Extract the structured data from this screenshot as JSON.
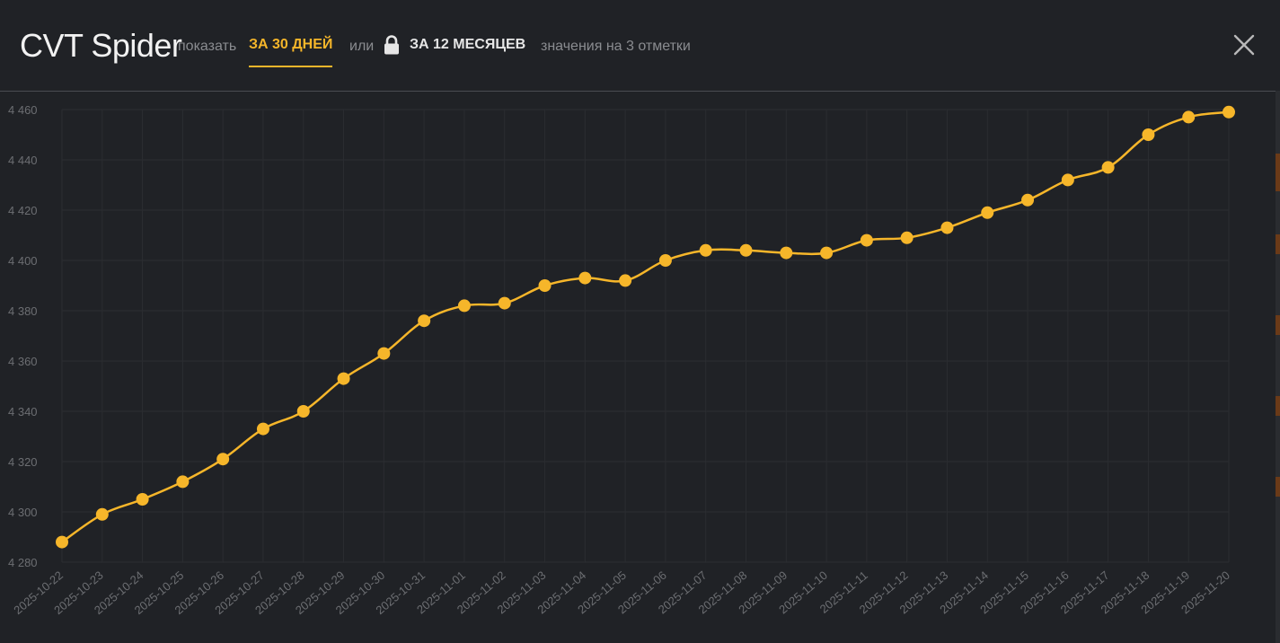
{
  "header": {
    "title": "CVT Spider",
    "show_label": "показать",
    "tab_30_days": "ЗА 30 ДНЕЙ",
    "or_label": "или",
    "tab_12_months": "ЗА 12 МЕСЯЦЕВ",
    "values_note": "значения на 3 отметки"
  },
  "colors": {
    "accent": "#f6b62a",
    "background": "#202226",
    "grid": "#2b2d31",
    "tick_text": "#6c6e72"
  },
  "chart_data": {
    "type": "line",
    "title": "",
    "xlabel": "",
    "ylabel": "",
    "ylim": [
      4280,
      4460
    ],
    "yticks": [
      4280,
      4300,
      4320,
      4340,
      4360,
      4380,
      4400,
      4420,
      4440,
      4460
    ],
    "ytick_labels": [
      "4 280",
      "4 300",
      "4 320",
      "4 340",
      "4 360",
      "4 380",
      "4 400",
      "4 420",
      "4 440",
      "4 460"
    ],
    "grid": true,
    "categories": [
      "2025-10-22",
      "2025-10-23",
      "2025-10-24",
      "2025-10-25",
      "2025-10-26",
      "2025-10-27",
      "2025-10-28",
      "2025-10-29",
      "2025-10-30",
      "2025-10-31",
      "2025-11-01",
      "2025-11-02",
      "2025-11-03",
      "2025-11-04",
      "2025-11-05",
      "2025-11-06",
      "2025-11-07",
      "2025-11-08",
      "2025-11-09",
      "2025-11-10",
      "2025-11-11",
      "2025-11-12",
      "2025-11-13",
      "2025-11-14",
      "2025-11-15",
      "2025-11-16",
      "2025-11-17",
      "2025-11-18",
      "2025-11-19",
      "2025-11-20"
    ],
    "series": [
      {
        "values": [
          4288,
          4299,
          4305,
          4312,
          4321,
          4333,
          4340,
          4353,
          4363,
          4376,
          4382,
          4383,
          4390,
          4393,
          4392,
          4400,
          4404,
          4404,
          4403,
          4403,
          4408,
          4409,
          4413,
          4419,
          4424,
          4432,
          4437,
          4450,
          4457,
          4459
        ]
      }
    ]
  }
}
